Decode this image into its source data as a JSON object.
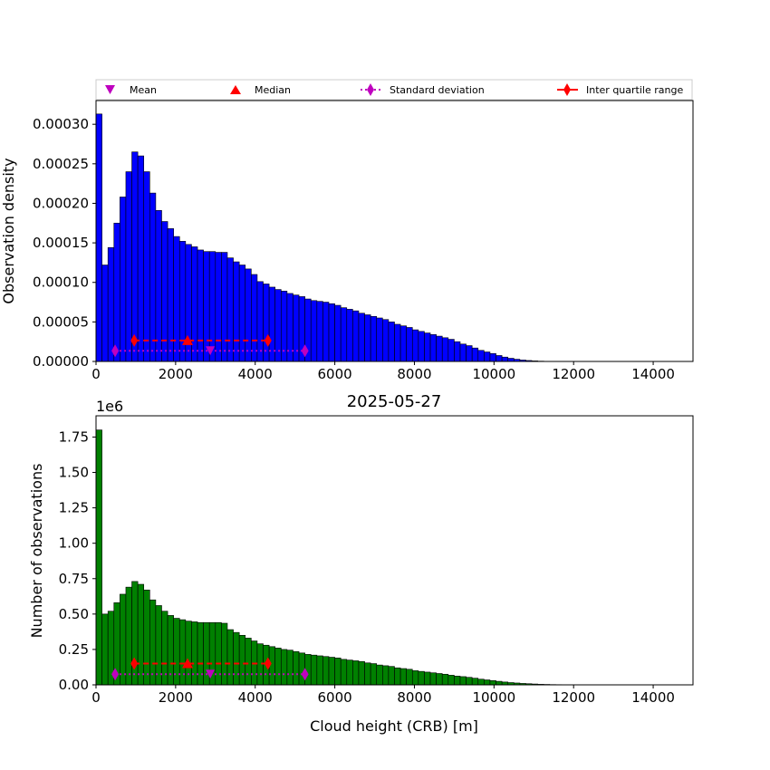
{
  "legend": {
    "mean_label": "Mean",
    "median_label": "Median",
    "std_label": "Standard deviation",
    "iqr_label": "Inter quartile range"
  },
  "colors": {
    "density_bars": "#0000ff",
    "count_bars": "#008000",
    "mean": "#bf00bf",
    "median": "#ff0000",
    "std": "#bf00bf",
    "iqr": "#ff0000"
  },
  "chart_data": [
    {
      "type": "bar",
      "title": "",
      "xlabel": "",
      "ylabel": "Observation density",
      "xlim": [
        0,
        15000
      ],
      "ylim": [
        0,
        0.00033
      ],
      "bin_width": 150,
      "x_ticks": [
        "0",
        "2000",
        "4000",
        "6000",
        "8000",
        "10000",
        "12000",
        "14000"
      ],
      "y_ticks": [
        "0.00000",
        "0.00005",
        "0.00010",
        "0.00015",
        "0.00020",
        "0.00025",
        "0.00030"
      ],
      "values": [
        0.000313,
        0.000122,
        0.000144,
        0.000175,
        0.000208,
        0.00024,
        0.000265,
        0.00026,
        0.00024,
        0.000213,
        0.000191,
        0.000177,
        0.000168,
        0.000158,
        0.000152,
        0.000148,
        0.000145,
        0.000141,
        0.000139,
        0.000139,
        0.000138,
        0.000138,
        0.000131,
        0.000126,
        0.000122,
        0.000117,
        0.00011,
        0.000101,
        9.8e-05,
        9.4e-05,
        9.1e-05,
        8.9e-05,
        8.6e-05,
        8.4e-05,
        8.2e-05,
        7.9e-05,
        7.7e-05,
        7.6e-05,
        7.5e-05,
        7.3e-05,
        7.1e-05,
        6.8e-05,
        6.6e-05,
        6.4e-05,
        6.1e-05,
        5.9e-05,
        5.7e-05,
        5.5e-05,
        5.3e-05,
        5e-05,
        4.7e-05,
        4.5e-05,
        4.3e-05,
        4e-05,
        3.8e-05,
        3.6e-05,
        3.4e-05,
        3.2e-05,
        3e-05,
        2.8e-05,
        2.5e-05,
        2.2e-05,
        2e-05,
        1.7e-05,
        1.4e-05,
        1.2e-05,
        1e-05,
        7.5e-06,
        5.5e-06,
        4e-06,
        2.8e-06,
        1.8e-06,
        1.2e-06,
        7e-07,
        4e-07,
        2e-07,
        1e-07,
        0,
        0,
        0,
        0,
        0,
        0,
        0,
        0,
        0,
        0,
        0,
        0,
        0,
        0,
        0,
        0,
        0,
        0,
        0,
        0,
        0,
        0,
        0
      ],
      "statistics": {
        "mean": {
          "x": 2870,
          "y": 1.35e-05
        },
        "median": {
          "x": 2300,
          "y": 2.65e-05
        },
        "std_range": [
          480,
          5250
        ],
        "std_y": 1.35e-05,
        "iqr_range": [
          960,
          4320
        ],
        "iqr_y": 2.65e-05
      }
    },
    {
      "type": "bar",
      "title": "2025-05-27",
      "xlabel": "Cloud height (CRB) [m]",
      "ylabel": "Number of observations",
      "y_multiplier": "1e6",
      "xlim": [
        0,
        15000
      ],
      "ylim": [
        0,
        1.9
      ],
      "bin_width": 150,
      "x_ticks": [
        "0",
        "2000",
        "4000",
        "6000",
        "8000",
        "10000",
        "12000",
        "14000"
      ],
      "y_ticks": [
        "0.00",
        "0.25",
        "0.50",
        "0.75",
        "1.00",
        "1.25",
        "1.50",
        "1.75"
      ],
      "values": [
        1.8,
        0.5,
        0.52,
        0.58,
        0.64,
        0.69,
        0.73,
        0.71,
        0.67,
        0.6,
        0.56,
        0.52,
        0.49,
        0.47,
        0.46,
        0.45,
        0.445,
        0.44,
        0.44,
        0.44,
        0.44,
        0.435,
        0.39,
        0.37,
        0.35,
        0.33,
        0.31,
        0.29,
        0.28,
        0.27,
        0.26,
        0.25,
        0.245,
        0.235,
        0.225,
        0.215,
        0.21,
        0.205,
        0.2,
        0.195,
        0.19,
        0.18,
        0.175,
        0.17,
        0.165,
        0.155,
        0.15,
        0.14,
        0.135,
        0.13,
        0.12,
        0.115,
        0.11,
        0.1,
        0.095,
        0.09,
        0.085,
        0.08,
        0.075,
        0.068,
        0.062,
        0.058,
        0.053,
        0.047,
        0.04,
        0.035,
        0.03,
        0.025,
        0.02,
        0.016,
        0.013,
        0.01,
        0.008,
        0.006,
        0.004,
        0.003,
        0.002,
        0.0015,
        0.001,
        0.0008,
        0.0005,
        0.0004,
        0.0003,
        0.0002,
        0.0001,
        0.0001,
        0.0001,
        0,
        0,
        0,
        0,
        0,
        0,
        0,
        0,
        0,
        0,
        0,
        0,
        0
      ],
      "statistics": {
        "mean": {
          "x": 2870,
          "y": 0.075
        },
        "median": {
          "x": 2300,
          "y": 0.15
        },
        "std_range": [
          480,
          5250
        ],
        "std_y": 0.075,
        "iqr_range": [
          960,
          4320
        ],
        "iqr_y": 0.15
      }
    }
  ]
}
